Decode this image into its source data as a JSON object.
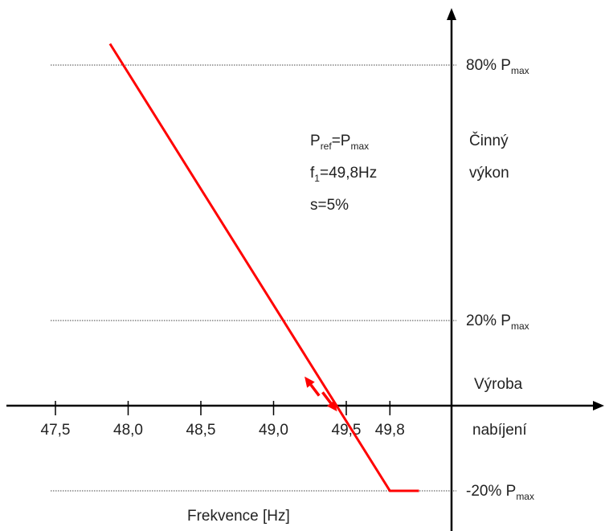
{
  "chart_data": {
    "type": "line",
    "xlabel": "Frekvence [Hz]",
    "ylabel_lines": [
      "Činný",
      "výkon"
    ],
    "x_ticks": [
      {
        "value": 47.5,
        "label": "47,5"
      },
      {
        "value": 48.0,
        "label": "48,0"
      },
      {
        "value": 48.5,
        "label": "48,5"
      },
      {
        "value": 49.0,
        "label": "49,0"
      },
      {
        "value": 49.5,
        "label": "49,5"
      },
      {
        "value": 49.8,
        "label": "49,8"
      }
    ],
    "y_levels": [
      {
        "value": 80,
        "label_main": "80% P",
        "label_sub": "max"
      },
      {
        "value": 20,
        "label_main": "20% P",
        "label_sub": "max"
      },
      {
        "value": -20,
        "label_main": "-20% P",
        "label_sub": "max"
      }
    ],
    "axis_annotations": {
      "above": "Výroba",
      "below": "nabíjení"
    },
    "parameters": [
      {
        "main": "P",
        "sub": "ref",
        "rest": "=P",
        "sub2": "max"
      },
      {
        "main": "f",
        "sub": "1",
        "rest": "=49,8Hz",
        "sub2": ""
      },
      {
        "main": "s=5%",
        "sub": "",
        "rest": "",
        "sub2": ""
      }
    ],
    "series": [
      {
        "color": "#ff0000",
        "points": [
          [
            47.875,
            85
          ],
          [
            49.8,
            -20
          ],
          [
            50.0,
            -20
          ]
        ]
      }
    ],
    "arrow_markers": [
      {
        "from": [
          49.3,
          2
        ],
        "to": [
          49.2,
          6.5
        ]
      },
      {
        "from": [
          49.35,
          3.5
        ],
        "to": [
          49.45,
          -1
        ]
      }
    ],
    "xlim": [
      47.4,
      50.0
    ],
    "ylim": [
      -23,
      90
    ],
    "colors": {
      "line": "#ff0000",
      "axis": "#000000",
      "grid": "#444444"
    }
  }
}
